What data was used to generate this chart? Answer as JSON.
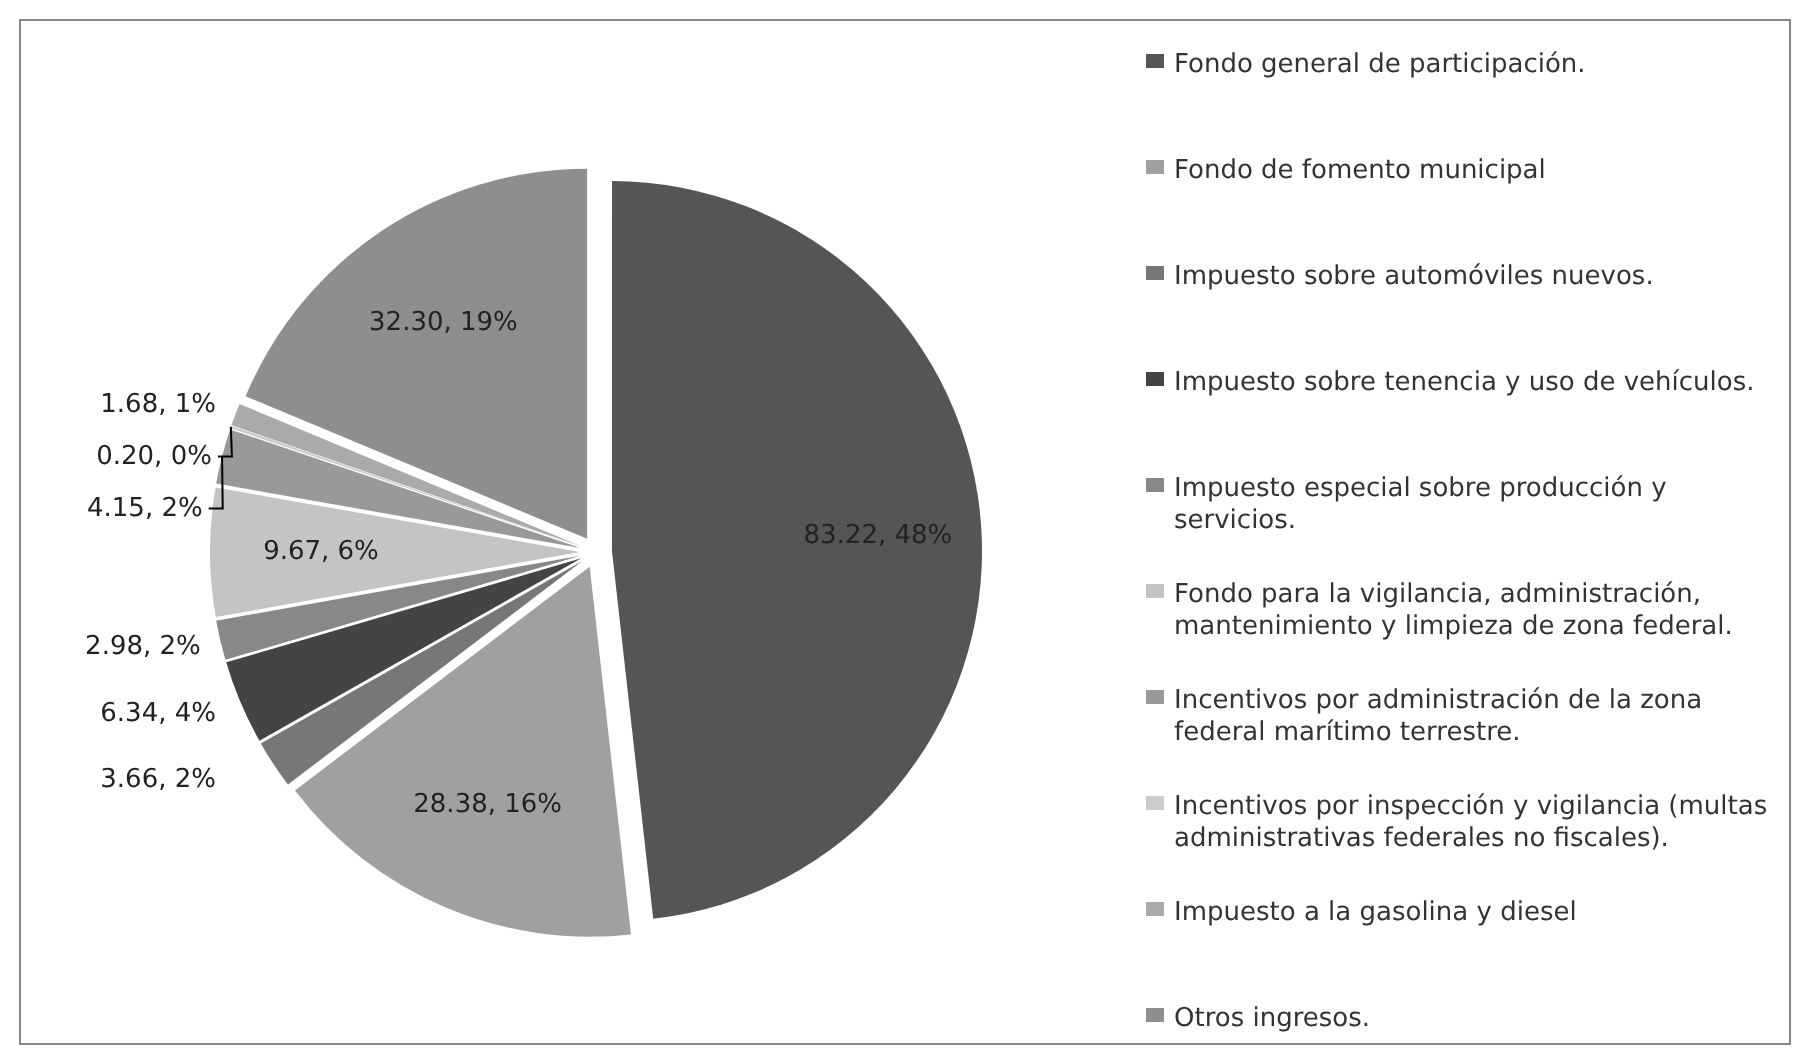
{
  "chart_data": {
    "type": "pie",
    "categories": [
      "Fondo general de participación.",
      "Fondo de fomento municipal",
      "Impuesto sobre automóviles nuevos.",
      "Impuesto sobre tenencia y uso de vehículos.",
      "Impuesto especial sobre producción y servicios.",
      "Fondo para la vigilancia, administración, mantenimiento y limpieza de zona federal.",
      "Incentivos por administración de la zona federal marítimo terrestre.",
      "Incentivos por inspección y vigilancia (multas administrativas federales no fiscales).",
      "Impuesto a la gasolina y diesel",
      "Otros ingresos."
    ],
    "values": [
      83.22,
      28.38,
      3.66,
      6.34,
      2.98,
      9.67,
      4.15,
      0.2,
      1.68,
      32.3
    ],
    "value_labels": [
      "83.22, 48%",
      "28.38, 16%",
      "3.66, 2%",
      "6.34, 4%",
      "2.98, 2%",
      "9.67, 6%",
      "4.15, 2%",
      "0.20, 0%",
      "1.68, 1%",
      "32.30, 19%"
    ],
    "colors": [
      "#555555",
      "#a0a0a0",
      "#777777",
      "#444444",
      "#888888",
      "#c4c4c4",
      "#999999",
      "#cccccc",
      "#aaaaaa",
      "#8e8e8e"
    ],
    "legend": "right"
  }
}
